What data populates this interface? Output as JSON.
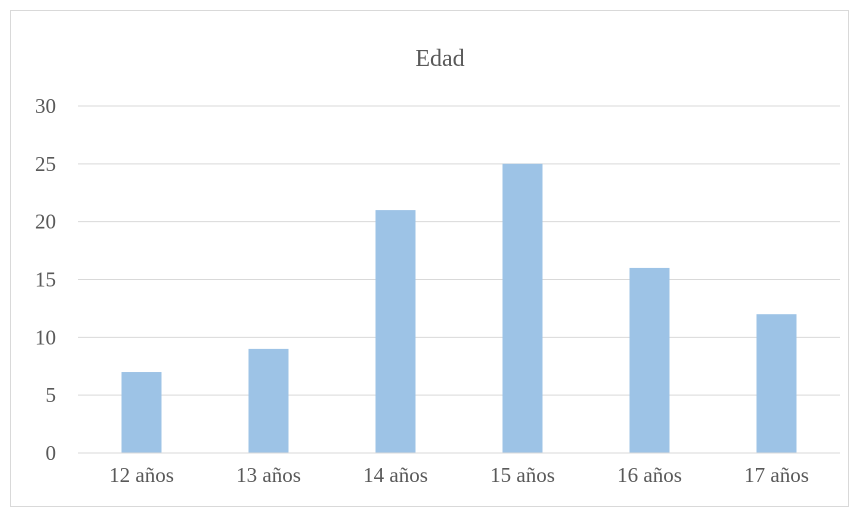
{
  "chart_data": {
    "type": "bar",
    "title": "Edad",
    "xlabel": "",
    "ylabel": "",
    "categories": [
      "12 años",
      "13 años",
      "14 años",
      "15 años",
      "16 años",
      "17 años"
    ],
    "values": [
      7,
      9,
      21,
      25,
      16,
      12
    ],
    "ylim": [
      0,
      30
    ],
    "yticks": [
      0,
      5,
      10,
      15,
      20,
      25,
      30
    ],
    "grid": true,
    "legend": "none",
    "bar_color": "#9dc3e6",
    "grid_color": "#d9d9d9"
  }
}
